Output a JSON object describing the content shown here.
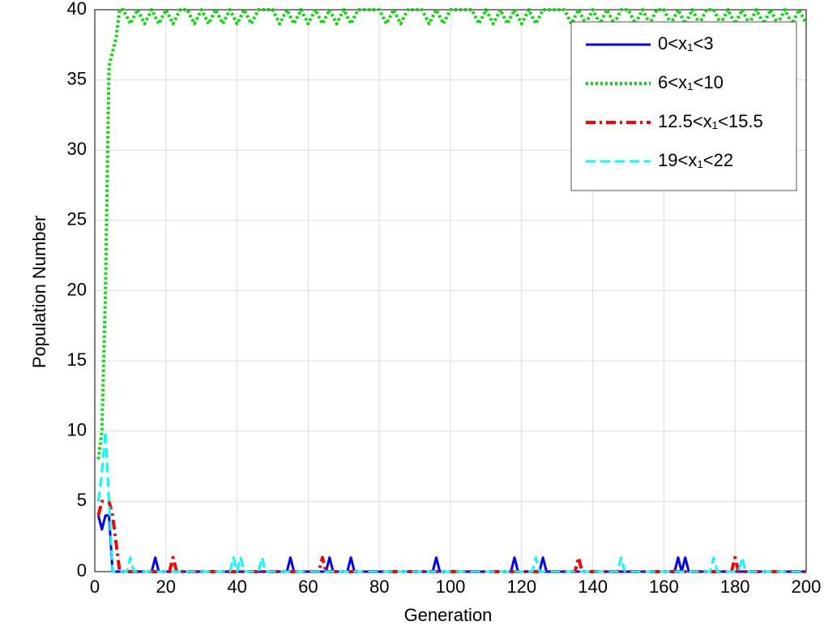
{
  "chart_data": {
    "type": "line",
    "xlabel": "Generation",
    "ylabel": "Population Number",
    "xlim": [
      0,
      200
    ],
    "xticks": [
      0,
      20,
      40,
      60,
      80,
      100,
      120,
      140,
      160,
      180,
      200
    ],
    "ylim": [
      0,
      40
    ],
    "yticks": [
      0,
      5,
      10,
      15,
      20,
      25,
      30,
      35,
      40
    ],
    "grid": true,
    "legend": "upper right",
    "series": [
      {
        "name": "0<x₁<3",
        "color": "#0000ff",
        "style": "solid",
        "x": [
          1,
          2,
          3,
          4,
          5,
          16,
          17,
          18,
          54,
          55,
          56,
          65,
          66,
          67,
          71,
          72,
          73,
          95,
          96,
          97,
          117,
          118,
          119,
          125,
          126,
          127,
          163,
          164,
          165,
          166,
          167,
          200
        ],
        "values": [
          4,
          3,
          4,
          4,
          0,
          0,
          1,
          0,
          0,
          1,
          0,
          0,
          1,
          0,
          0,
          1,
          0,
          0,
          1,
          0,
          0,
          1,
          0,
          0,
          1,
          0,
          0,
          1,
          0,
          1,
          0,
          0
        ]
      },
      {
        "name": "6<x₁<10",
        "color": "#00dd00",
        "style": "dotted",
        "x": [
          1,
          2,
          3,
          4,
          5,
          6,
          7,
          8,
          10,
          12,
          14,
          16,
          18,
          20,
          22,
          24,
          26,
          28,
          30,
          32,
          34,
          36,
          38,
          40,
          42,
          44,
          46,
          48,
          50,
          52,
          54,
          56,
          58,
          60,
          62,
          64,
          66,
          68,
          70,
          72,
          74,
          76,
          78,
          80,
          82,
          84,
          86,
          88,
          90,
          92,
          94,
          96,
          98,
          100,
          102,
          104,
          106,
          108,
          110,
          112,
          114,
          116,
          118,
          120,
          122,
          124,
          126,
          128,
          130,
          132,
          134,
          136,
          138,
          140,
          142,
          144,
          146,
          148,
          150,
          152,
          154,
          156,
          158,
          160,
          162,
          164,
          166,
          168,
          170,
          172,
          174,
          176,
          178,
          180,
          182,
          184,
          186,
          188,
          190,
          192,
          194,
          196,
          198,
          200
        ],
        "values": [
          8,
          10,
          20,
          36,
          37,
          38,
          40,
          40,
          39,
          40,
          39,
          40,
          39,
          40,
          39,
          40,
          40,
          39,
          40,
          39,
          40,
          39,
          40,
          39,
          40,
          39,
          40,
          40,
          40,
          39,
          40,
          39,
          40,
          39,
          40,
          39,
          40,
          39,
          40,
          39,
          40,
          40,
          40,
          40,
          39,
          40,
          39,
          40,
          40,
          40,
          39,
          40,
          39,
          40,
          40,
          40,
          40,
          39,
          40,
          39,
          40,
          39,
          40,
          39,
          40,
          39,
          40,
          40,
          40,
          40,
          39,
          40,
          39,
          40,
          39,
          40,
          39,
          40,
          40,
          39,
          40,
          39,
          40,
          40,
          39,
          40,
          39,
          40,
          39,
          40,
          40,
          39,
          40,
          39,
          40,
          39,
          40,
          39,
          40,
          39,
          40,
          39,
          40,
          39
        ]
      },
      {
        "name": "12.5<x₁<15.5",
        "color": "#ff0000",
        "style": "dashdot",
        "x": [
          1,
          2,
          3,
          4,
          5,
          6,
          7,
          21,
          22,
          23,
          63,
          64,
          65,
          135,
          136,
          137,
          179,
          180,
          181,
          200
        ],
        "values": [
          4,
          5,
          5,
          5,
          4,
          2,
          0,
          0,
          1,
          0,
          0,
          1,
          0,
          0,
          1,
          0,
          0,
          1,
          0,
          0
        ]
      },
      {
        "name": "19<x₁<22",
        "color": "#00ffff",
        "style": "dashed",
        "x": [
          1,
          2,
          3,
          4,
          5,
          9,
          10,
          11,
          38,
          39,
          40,
          41,
          42,
          46,
          47,
          48,
          123,
          124,
          125,
          147,
          148,
          149,
          173,
          174,
          175,
          181,
          182,
          183,
          200
        ],
        "values": [
          5,
          7,
          10,
          5,
          0,
          0,
          1,
          0,
          0,
          1,
          0,
          1,
          0,
          0,
          1,
          0,
          0,
          1,
          0,
          0,
          1,
          0,
          0,
          1,
          0,
          0,
          1,
          0,
          0
        ]
      }
    ]
  }
}
